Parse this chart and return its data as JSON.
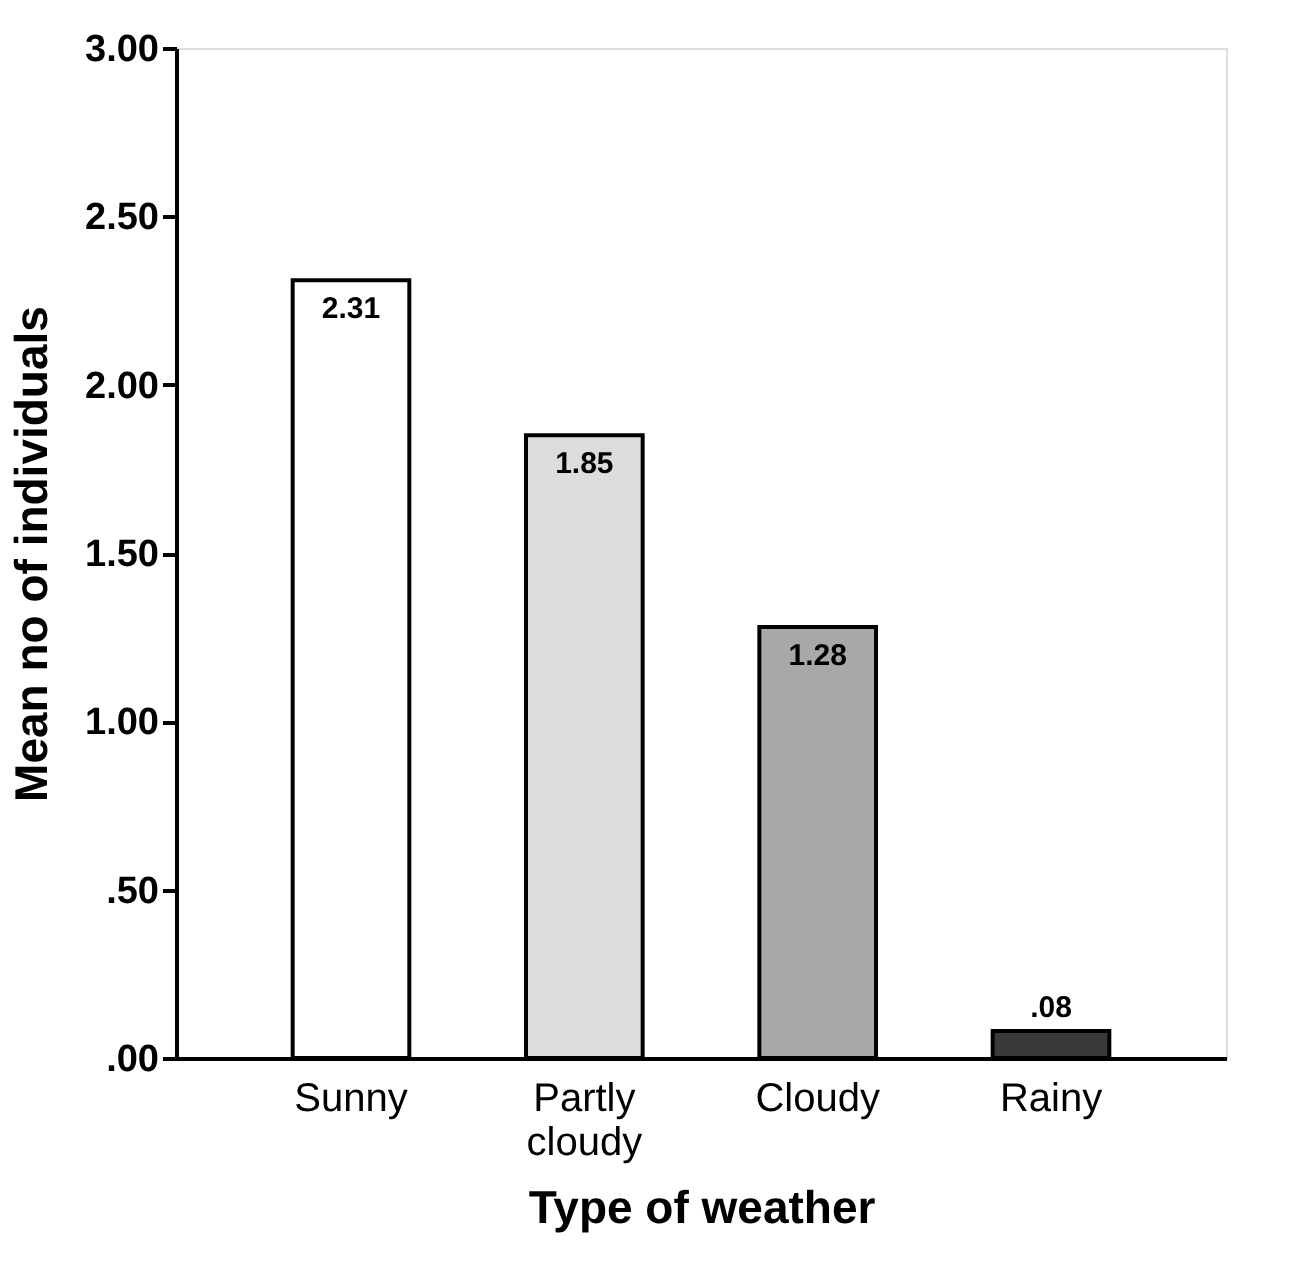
{
  "chart_data": {
    "type": "bar",
    "xlabel": "Type of weather",
    "ylabel": "Mean no of individuals",
    "categories": [
      "Sunny",
      "Partly cloudy",
      "Cloudy",
      "Rainy"
    ],
    "values": [
      2.31,
      1.85,
      1.28,
      0.08
    ],
    "colors": [
      "#ffffff",
      "#dcdcdc",
      "#a8a8a8",
      "#3a3a3a"
    ],
    "value_labels": [
      "2.31",
      "1.85",
      "1.28",
      ".08"
    ],
    "ylim": [
      0,
      3
    ],
    "yticks": [
      {
        "value": 0,
        "label": ".00"
      },
      {
        "value": 0.5,
        "label": ".50"
      },
      {
        "value": 1,
        "label": "1.00"
      },
      {
        "value": 1.5,
        "label": "1.50"
      },
      {
        "value": 2,
        "label": "2.00"
      },
      {
        "value": 2.5,
        "label": "2.50"
      },
      {
        "value": 3,
        "label": "3.00"
      }
    ],
    "grid": false,
    "legend": false
  }
}
